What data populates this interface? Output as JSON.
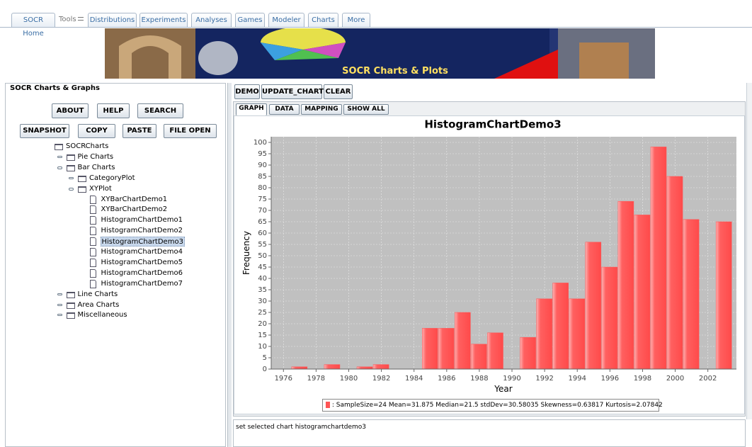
{
  "tabs": [
    "SOCR Home",
    "Tools",
    "Distributions",
    "Experiments",
    "Analyses",
    "Games",
    "Modeler",
    "Charts",
    "More"
  ],
  "banner": {
    "title": "SOCR Charts & Plots"
  },
  "left_panel": {
    "title": "SOCR Charts & Graphs",
    "buttons": [
      [
        "ABOUT",
        "HELP",
        "SEARCH"
      ],
      [
        "SNAPSHOT",
        "COPY",
        "PASTE",
        "FILE OPEN"
      ]
    ],
    "tree": {
      "label": "SOCRCharts",
      "children": [
        {
          "label": "Pie Charts",
          "children": []
        },
        {
          "label": "Bar Charts",
          "children": [
            {
              "label": "CategoryPlot",
              "children": []
            },
            {
              "label": "XYPlot",
              "children": [
                {
                  "label": "XYBarChartDemo1"
                },
                {
                  "label": "XYBarChartDemo2"
                },
                {
                  "label": "HistogramChartDemo1"
                },
                {
                  "label": "HistogramChartDemo2"
                },
                {
                  "label": "HistogramChartDemo3",
                  "selected": true
                },
                {
                  "label": "HistogramChartDemo4"
                },
                {
                  "label": "HistogramChartDemo5"
                },
                {
                  "label": "HistogramChartDemo6"
                },
                {
                  "label": "HistogramChartDemo7"
                }
              ]
            }
          ]
        },
        {
          "label": "Line Charts",
          "children": []
        },
        {
          "label": "Area Charts",
          "children": []
        },
        {
          "label": "Miscellaneous",
          "children": []
        }
      ]
    }
  },
  "toolbar": [
    "DEMO",
    "UPDATE_CHART",
    "CLEAR"
  ],
  "view_tabs": [
    "GRAPH",
    "DATA",
    "MAPPING",
    "SHOW ALL"
  ],
  "chart_data": {
    "type": "histogram",
    "title": "HistogramChartDemo3",
    "x_label": "Year",
    "y_label": "Frequency",
    "bins": [
      1976.5,
      1977.5,
      1978.5,
      1979.5,
      1980.5,
      1981.5,
      1982.5,
      1983.5,
      1984.5,
      1985.5,
      1986.5,
      1987.5,
      1988.5,
      1989.5,
      1990.5,
      1991.5,
      1992.5,
      1993.5,
      1994.5,
      1995.5,
      1996.5,
      1997.5,
      1998.5,
      1999.5,
      2000.5,
      2001.5,
      2002.5,
      2003.5
    ],
    "counts": [
      1,
      0,
      2,
      0,
      1,
      2,
      0,
      0,
      18,
      18,
      25,
      11,
      16,
      0,
      14,
      31,
      38,
      31,
      56,
      45,
      74,
      68,
      98,
      85,
      66,
      0,
      65
    ],
    "color": "#ff5555",
    "background": "#c0c0c0",
    "grid": true,
    "xlim": [
      1975.25,
      2003.75
    ],
    "xticks": [
      1976,
      1978,
      1980,
      1982,
      1984,
      1986,
      1988,
      1990,
      1992,
      1994,
      1996,
      1998,
      2000,
      2002
    ],
    "ylim": [
      0,
      102.5
    ],
    "yticks": [
      0,
      5,
      10,
      15,
      20,
      25,
      30,
      35,
      40,
      45,
      50,
      55,
      60,
      65,
      70,
      75,
      80,
      85,
      90,
      95,
      100
    ],
    "legend": "SampleSize=24 Mean=31.875 Median=21.5 stdDev=30.58035 Skewness=0.63817 Kurtosis=2.07842"
  },
  "status": "set selected chart histogramchartdemo3"
}
